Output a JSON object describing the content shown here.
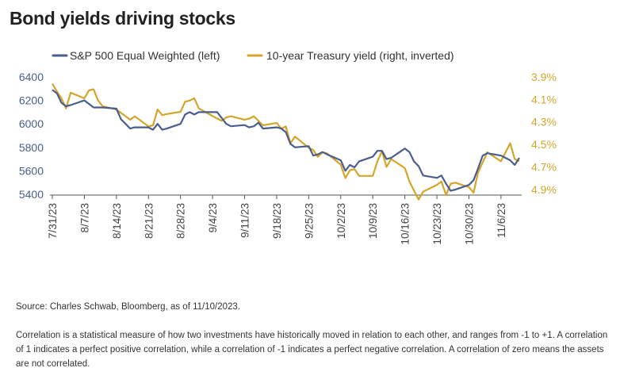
{
  "title": "Bond yields driving stocks",
  "source": "Source: Charles Schwab, Bloomberg, as of 11/10/2023.",
  "note": "Correlation is a statistical measure of how two investments have historically moved in relation to each other, and ranges from -1 to +1. A correlation of 1 indicates a perfect positive correlation, while a correlation of -1 indicates a perfect negative correlation. A correlation of zero means the assets are not correlated.",
  "chart_data": {
    "type": "line",
    "legend_position": "top",
    "x_ticks": [
      "7/31/23",
      "8/7/23",
      "8/14/23",
      "8/21/23",
      "8/28/23",
      "9/4/23",
      "9/11/23",
      "9/18/23",
      "9/25/23",
      "10/2/23",
      "10/9/23",
      "10/16/23",
      "10/23/23",
      "10/30/23",
      "11/6/23"
    ],
    "y_left": {
      "min": 5400,
      "max": 6400,
      "ticks": [
        6400,
        6200,
        6000,
        5800,
        5600,
        5400
      ]
    },
    "y_right": {
      "min": 3.9,
      "max": 5.0,
      "inverted": true,
      "ticks": [
        "3.9%",
        "4.1%",
        "4.3%",
        "4.5%",
        "4.7%",
        "4.9%"
      ],
      "tick_values": [
        3.9,
        4.1,
        4.3,
        4.5,
        4.7,
        4.9
      ]
    },
    "colors": {
      "sp500": "#4a5e8e",
      "treasury": "#d4a52a",
      "axis": "#555555"
    },
    "series": [
      {
        "name": "S&P 500 Equal Weighted (left)",
        "axis": "left",
        "values": [
          [
            "2023-07-31",
            6290
          ],
          [
            "2023-08-01",
            6260
          ],
          [
            "2023-08-02",
            6180
          ],
          [
            "2023-08-03",
            6150
          ],
          [
            "2023-08-04",
            6160
          ],
          [
            "2023-08-07",
            6200
          ],
          [
            "2023-08-08",
            6170
          ],
          [
            "2023-08-09",
            6140
          ],
          [
            "2023-08-10",
            6140
          ],
          [
            "2023-08-11",
            6140
          ],
          [
            "2023-08-14",
            6130
          ],
          [
            "2023-08-15",
            6040
          ],
          [
            "2023-08-16",
            6000
          ],
          [
            "2023-08-17",
            5960
          ],
          [
            "2023-08-18",
            5970
          ],
          [
            "2023-08-21",
            5970
          ],
          [
            "2023-08-22",
            5950
          ],
          [
            "2023-08-23",
            6000
          ],
          [
            "2023-08-24",
            5950
          ],
          [
            "2023-08-25",
            5960
          ],
          [
            "2023-08-28",
            6000
          ],
          [
            "2023-08-29",
            6080
          ],
          [
            "2023-08-30",
            6100
          ],
          [
            "2023-08-31",
            6080
          ],
          [
            "2023-09-01",
            6100
          ],
          [
            "2023-09-05",
            6100
          ],
          [
            "2023-09-06",
            6050
          ],
          [
            "2023-09-07",
            6000
          ],
          [
            "2023-09-08",
            5980
          ],
          [
            "2023-09-11",
            5990
          ],
          [
            "2023-09-12",
            5970
          ],
          [
            "2023-09-13",
            5980
          ],
          [
            "2023-09-14",
            6010
          ],
          [
            "2023-09-15",
            5960
          ],
          [
            "2023-09-18",
            5970
          ],
          [
            "2023-09-19",
            5960
          ],
          [
            "2023-09-20",
            5930
          ],
          [
            "2023-09-21",
            5830
          ],
          [
            "2023-09-22",
            5800
          ],
          [
            "2023-09-25",
            5810
          ],
          [
            "2023-09-26",
            5730
          ],
          [
            "2023-09-27",
            5740
          ],
          [
            "2023-09-28",
            5760
          ],
          [
            "2023-09-29",
            5740
          ],
          [
            "2023-10-02",
            5690
          ],
          [
            "2023-10-03",
            5600
          ],
          [
            "2023-10-04",
            5650
          ],
          [
            "2023-10-05",
            5630
          ],
          [
            "2023-10-06",
            5680
          ],
          [
            "2023-10-09",
            5720
          ],
          [
            "2023-10-10",
            5770
          ],
          [
            "2023-10-11",
            5770
          ],
          [
            "2023-10-12",
            5700
          ],
          [
            "2023-10-13",
            5710
          ],
          [
            "2023-10-16",
            5790
          ],
          [
            "2023-10-17",
            5760
          ],
          [
            "2023-10-18",
            5680
          ],
          [
            "2023-10-19",
            5640
          ],
          [
            "2023-10-20",
            5560
          ],
          [
            "2023-10-23",
            5540
          ],
          [
            "2023-10-24",
            5560
          ],
          [
            "2023-10-25",
            5490
          ],
          [
            "2023-10-26",
            5430
          ],
          [
            "2023-10-27",
            5440
          ],
          [
            "2023-10-30",
            5480
          ],
          [
            "2023-10-31",
            5520
          ],
          [
            "2023-11-01",
            5620
          ],
          [
            "2023-11-02",
            5730
          ],
          [
            "2023-11-03",
            5750
          ],
          [
            "2023-11-06",
            5730
          ],
          [
            "2023-11-07",
            5710
          ],
          [
            "2023-11-08",
            5690
          ],
          [
            "2023-11-09",
            5650
          ],
          [
            "2023-11-10",
            5710
          ]
        ]
      },
      {
        "name": "10-year Treasury yield (right, inverted)",
        "axis": "right",
        "values": [
          [
            "2023-07-31",
            3.96
          ],
          [
            "2023-08-01",
            4.03
          ],
          [
            "2023-08-02",
            4.09
          ],
          [
            "2023-08-03",
            4.18
          ],
          [
            "2023-08-04",
            4.04
          ],
          [
            "2023-08-07",
            4.09
          ],
          [
            "2023-08-08",
            4.02
          ],
          [
            "2023-08-09",
            4.01
          ],
          [
            "2023-08-10",
            4.11
          ],
          [
            "2023-08-11",
            4.16
          ],
          [
            "2023-08-14",
            4.19
          ],
          [
            "2023-08-15",
            4.22
          ],
          [
            "2023-08-16",
            4.25
          ],
          [
            "2023-08-17",
            4.28
          ],
          [
            "2023-08-18",
            4.25
          ],
          [
            "2023-08-21",
            4.34
          ],
          [
            "2023-08-22",
            4.33
          ],
          [
            "2023-08-23",
            4.19
          ],
          [
            "2023-08-24",
            4.24
          ],
          [
            "2023-08-25",
            4.23
          ],
          [
            "2023-08-28",
            4.21
          ],
          [
            "2023-08-29",
            4.12
          ],
          [
            "2023-08-30",
            4.11
          ],
          [
            "2023-08-31",
            4.09
          ],
          [
            "2023-09-01",
            4.18
          ],
          [
            "2023-09-05",
            4.27
          ],
          [
            "2023-09-06",
            4.29
          ],
          [
            "2023-09-07",
            4.26
          ],
          [
            "2023-09-08",
            4.25
          ],
          [
            "2023-09-11",
            4.28
          ],
          [
            "2023-09-12",
            4.27
          ],
          [
            "2023-09-13",
            4.25
          ],
          [
            "2023-09-14",
            4.29
          ],
          [
            "2023-09-15",
            4.33
          ],
          [
            "2023-09-18",
            4.31
          ],
          [
            "2023-09-19",
            4.36
          ],
          [
            "2023-09-20",
            4.34
          ],
          [
            "2023-09-21",
            4.49
          ],
          [
            "2023-09-22",
            4.43
          ],
          [
            "2023-09-25",
            4.53
          ],
          [
            "2023-09-26",
            4.55
          ],
          [
            "2023-09-27",
            4.61
          ],
          [
            "2023-09-28",
            4.57
          ],
          [
            "2023-09-29",
            4.58
          ],
          [
            "2023-10-02",
            4.68
          ],
          [
            "2023-10-03",
            4.8
          ],
          [
            "2023-10-04",
            4.73
          ],
          [
            "2023-10-05",
            4.72
          ],
          [
            "2023-10-06",
            4.78
          ],
          [
            "2023-10-09",
            4.78
          ],
          [
            "2023-10-10",
            4.65
          ],
          [
            "2023-10-11",
            4.56
          ],
          [
            "2023-10-12",
            4.7
          ],
          [
            "2023-10-13",
            4.63
          ],
          [
            "2023-10-16",
            4.71
          ],
          [
            "2023-10-17",
            4.83
          ],
          [
            "2023-10-18",
            4.91
          ],
          [
            "2023-10-19",
            4.99
          ],
          [
            "2023-10-20",
            4.92
          ],
          [
            "2023-10-23",
            4.86
          ],
          [
            "2023-10-24",
            4.83
          ],
          [
            "2023-10-25",
            4.95
          ],
          [
            "2023-10-26",
            4.85
          ],
          [
            "2023-10-27",
            4.84
          ],
          [
            "2023-10-30",
            4.88
          ],
          [
            "2023-10-31",
            4.93
          ],
          [
            "2023-11-01",
            4.75
          ],
          [
            "2023-11-02",
            4.66
          ],
          [
            "2023-11-03",
            4.57
          ],
          [
            "2023-11-06",
            4.65
          ],
          [
            "2023-11-07",
            4.57
          ],
          [
            "2023-11-08",
            4.49
          ],
          [
            "2023-11-09",
            4.63
          ],
          [
            "2023-11-10",
            4.65
          ]
        ]
      }
    ]
  }
}
